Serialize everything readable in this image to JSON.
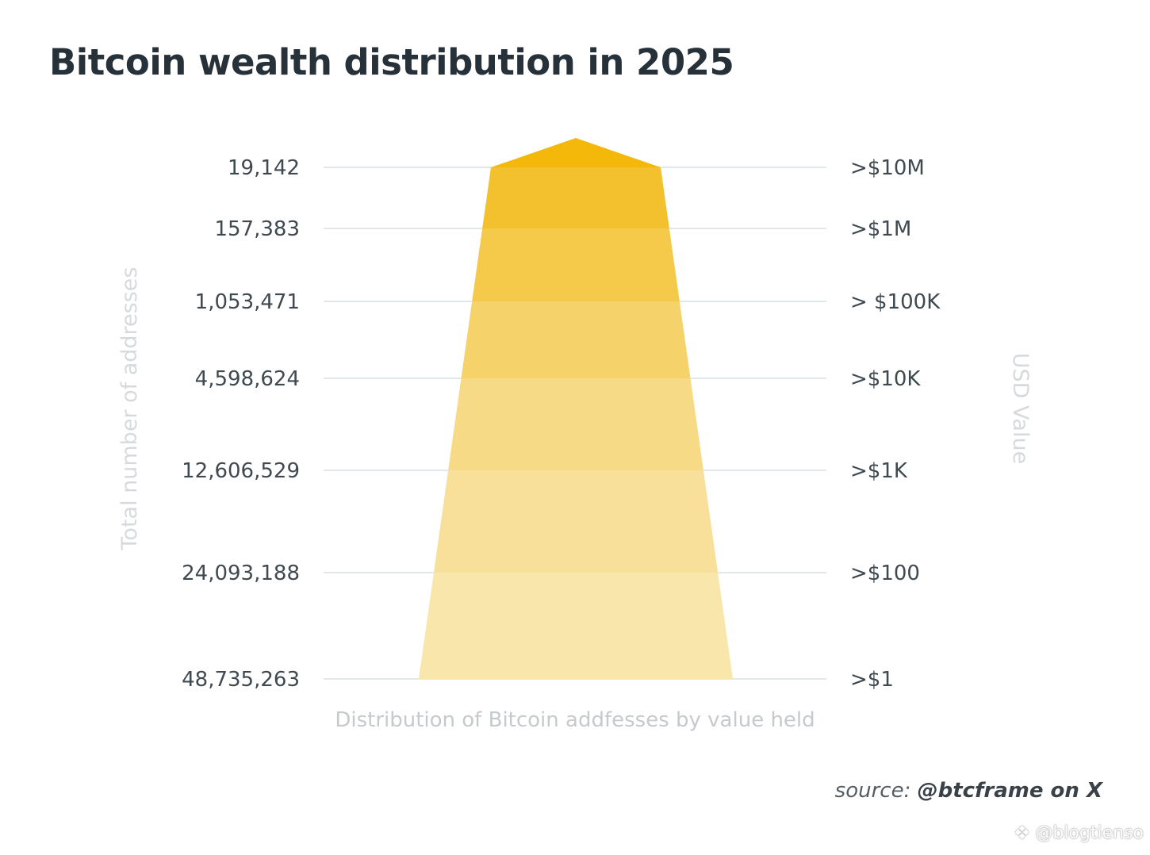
{
  "title": "Bitcoin wealth distribution in 2025",
  "chart_data": {
    "type": "area",
    "title": "Bitcoin wealth distribution in 2025",
    "left_axis_label": "Total number of addresses",
    "right_axis_label": "USD Value",
    "xlabel": "Distribution of Bitcoin addfesses by value held",
    "tiers": [
      {
        "value_label": ">$10M",
        "addresses": "19,142"
      },
      {
        "value_label": ">$1M",
        "addresses": "157,383"
      },
      {
        "value_label": "> $100K",
        "addresses": "1,053,471"
      },
      {
        "value_label": ">$10K",
        "addresses": "4,598,624"
      },
      {
        "value_label": ">$1K",
        "addresses": "12,606,529"
      },
      {
        "value_label": ">$100",
        "addresses": "24,093,188"
      },
      {
        "value_label": ">$1",
        "addresses": "48,735,263"
      }
    ],
    "colors": [
      "#f3b80a",
      "#f4c12e",
      "#f5c94a",
      "#f6d26a",
      "#f7da85",
      "#f8e09b",
      "#f9e6ab"
    ],
    "grid_color": "#d8e0e4"
  },
  "source": {
    "prefix": "source:",
    "handle": "@btcframe on X"
  },
  "watermark": "@blogtienso"
}
